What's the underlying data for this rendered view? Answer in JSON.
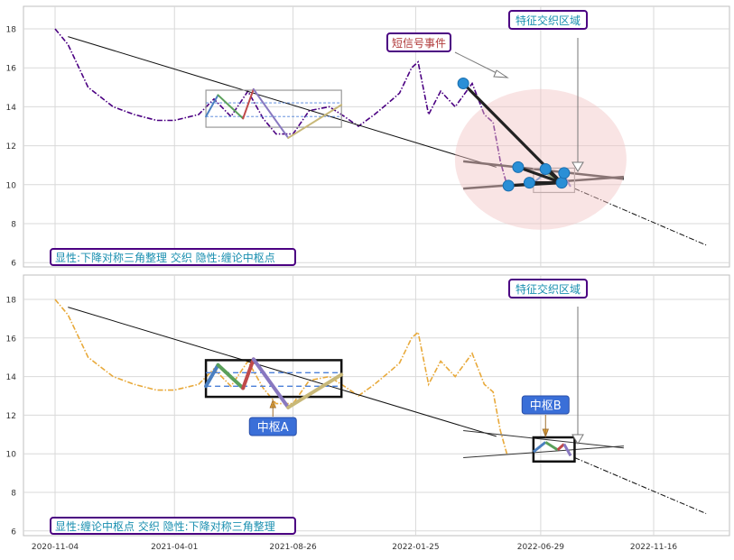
{
  "chart_data": [
    {
      "type": "line",
      "panel": "top",
      "ylim": [
        5.8,
        19.0
      ],
      "yticks": [
        6,
        8,
        10,
        12,
        14,
        16,
        18
      ],
      "xticks": [
        "2020-11-04",
        "2021-04-01",
        "2021-08-26",
        "2022-01-25",
        "2022-06-29",
        "2022-11-16"
      ],
      "grid": true,
      "series": [
        {
          "style": "dash-dot",
          "color": "#4b0082",
          "x": [
            "2020-11-04",
            "2020-11-20",
            "2020-12-15",
            "2021-01-15",
            "2021-02-10",
            "2021-03-10",
            "2021-04-01",
            "2021-05-01",
            "2021-05-20",
            "2021-06-10",
            "2021-07-01",
            "2021-07-20",
            "2021-08-05",
            "2021-08-26",
            "2021-09-15",
            "2021-10-10",
            "2021-10-25",
            "2021-11-15",
            "2021-12-05",
            "2021-12-25",
            "2022-01-05",
            "2022-01-20",
            "2022-01-28",
            "2022-02-10",
            "2022-02-25",
            "2022-03-15",
            "2022-04-05",
            "2022-04-20",
            "2022-05-01",
            "2022-05-10",
            "2022-05-18"
          ],
          "y": [
            18.0,
            17.2,
            15.0,
            14.0,
            13.6,
            13.3,
            13.3,
            13.6,
            14.4,
            13.5,
            14.8,
            13.4,
            12.6,
            12.6,
            13.8,
            14.0,
            13.6,
            13.0,
            13.6,
            14.3,
            14.7,
            16.0,
            16.3,
            13.6,
            14.8,
            14.0,
            15.2,
            13.6,
            13.2,
            11.2,
            10.0
          ]
        },
        {
          "style": "solid",
          "color": "#111111",
          "x": [
            "2020-11-20",
            "2022-05-05"
          ],
          "y": [
            17.6,
            10.9
          ]
        },
        {
          "style": "dash-dot",
          "color": "#111111",
          "x": [
            "2022-08-10",
            "2023-01-20"
          ],
          "y": [
            9.8,
            6.9
          ]
        }
      ],
      "markers": [
        {
          "x": "2022-03-25",
          "y": 15.2
        },
        {
          "x": "2022-05-20",
          "y": 9.95
        },
        {
          "x": "2022-06-01",
          "y": 10.9
        },
        {
          "x": "2022-06-15",
          "y": 10.1
        },
        {
          "x": "2022-07-05",
          "y": 10.8
        },
        {
          "x": "2022-07-25",
          "y": 10.1
        },
        {
          "x": "2022-07-28",
          "y": 10.6
        }
      ],
      "annotations": [
        {
          "text": "短信号事件",
          "color": "#b03a3a"
        },
        {
          "text": "特征交织区域",
          "color": "#1a8fb0"
        }
      ],
      "footer_label": "显性:下降对称三角整理 交织 隐性:缠论中枢点"
    },
    {
      "type": "line",
      "panel": "bottom",
      "ylim": [
        5.8,
        19.0
      ],
      "yticks": [
        6,
        8,
        10,
        12,
        14,
        16,
        18
      ],
      "xticks": [
        "2020-11-04",
        "2021-04-01",
        "2021-08-26",
        "2022-01-25",
        "2022-06-29",
        "2022-11-16"
      ],
      "grid": true,
      "series": [
        {
          "style": "dash-dot",
          "color": "#e8a93a",
          "x": [
            "2020-11-04",
            "2020-11-20",
            "2020-12-15",
            "2021-01-15",
            "2021-02-10",
            "2021-03-10",
            "2021-04-01",
            "2021-05-01",
            "2021-05-20",
            "2021-06-10",
            "2021-07-01",
            "2021-07-20",
            "2021-08-05",
            "2021-08-26",
            "2021-09-15",
            "2021-10-10",
            "2021-10-25",
            "2021-11-15",
            "2021-12-05",
            "2021-12-25",
            "2022-01-05",
            "2022-01-20",
            "2022-01-28",
            "2022-02-10",
            "2022-02-25",
            "2022-03-15",
            "2022-04-05",
            "2022-04-20",
            "2022-05-01",
            "2022-05-10",
            "2022-05-18"
          ],
          "y": [
            18.0,
            17.2,
            15.0,
            14.0,
            13.6,
            13.3,
            13.3,
            13.6,
            14.4,
            13.5,
            14.8,
            13.4,
            12.6,
            12.6,
            13.8,
            14.0,
            13.6,
            13.0,
            13.6,
            14.3,
            14.7,
            16.0,
            16.3,
            13.6,
            14.8,
            14.0,
            15.2,
            13.6,
            13.2,
            11.2,
            10.0
          ]
        },
        {
          "style": "solid",
          "color": "#111111",
          "x": [
            "2020-11-20",
            "2022-05-05"
          ],
          "y": [
            17.6,
            10.9
          ]
        },
        {
          "style": "dash-dot",
          "color": "#111111",
          "x": [
            "2022-08-10",
            "2023-01-20"
          ],
          "y": [
            9.8,
            6.9
          ]
        }
      ],
      "annotations": [
        {
          "text": "中枢A",
          "color": "#ffffff",
          "box": "#3a6fd8"
        },
        {
          "text": "中枢B",
          "color": "#ffffff",
          "box": "#3a6fd8"
        },
        {
          "text": "特征交织区域",
          "color": "#1a8fb0"
        }
      ],
      "footer_label": "显性:缠论中枢点 交织 隐性:下降对称三角整理"
    }
  ]
}
